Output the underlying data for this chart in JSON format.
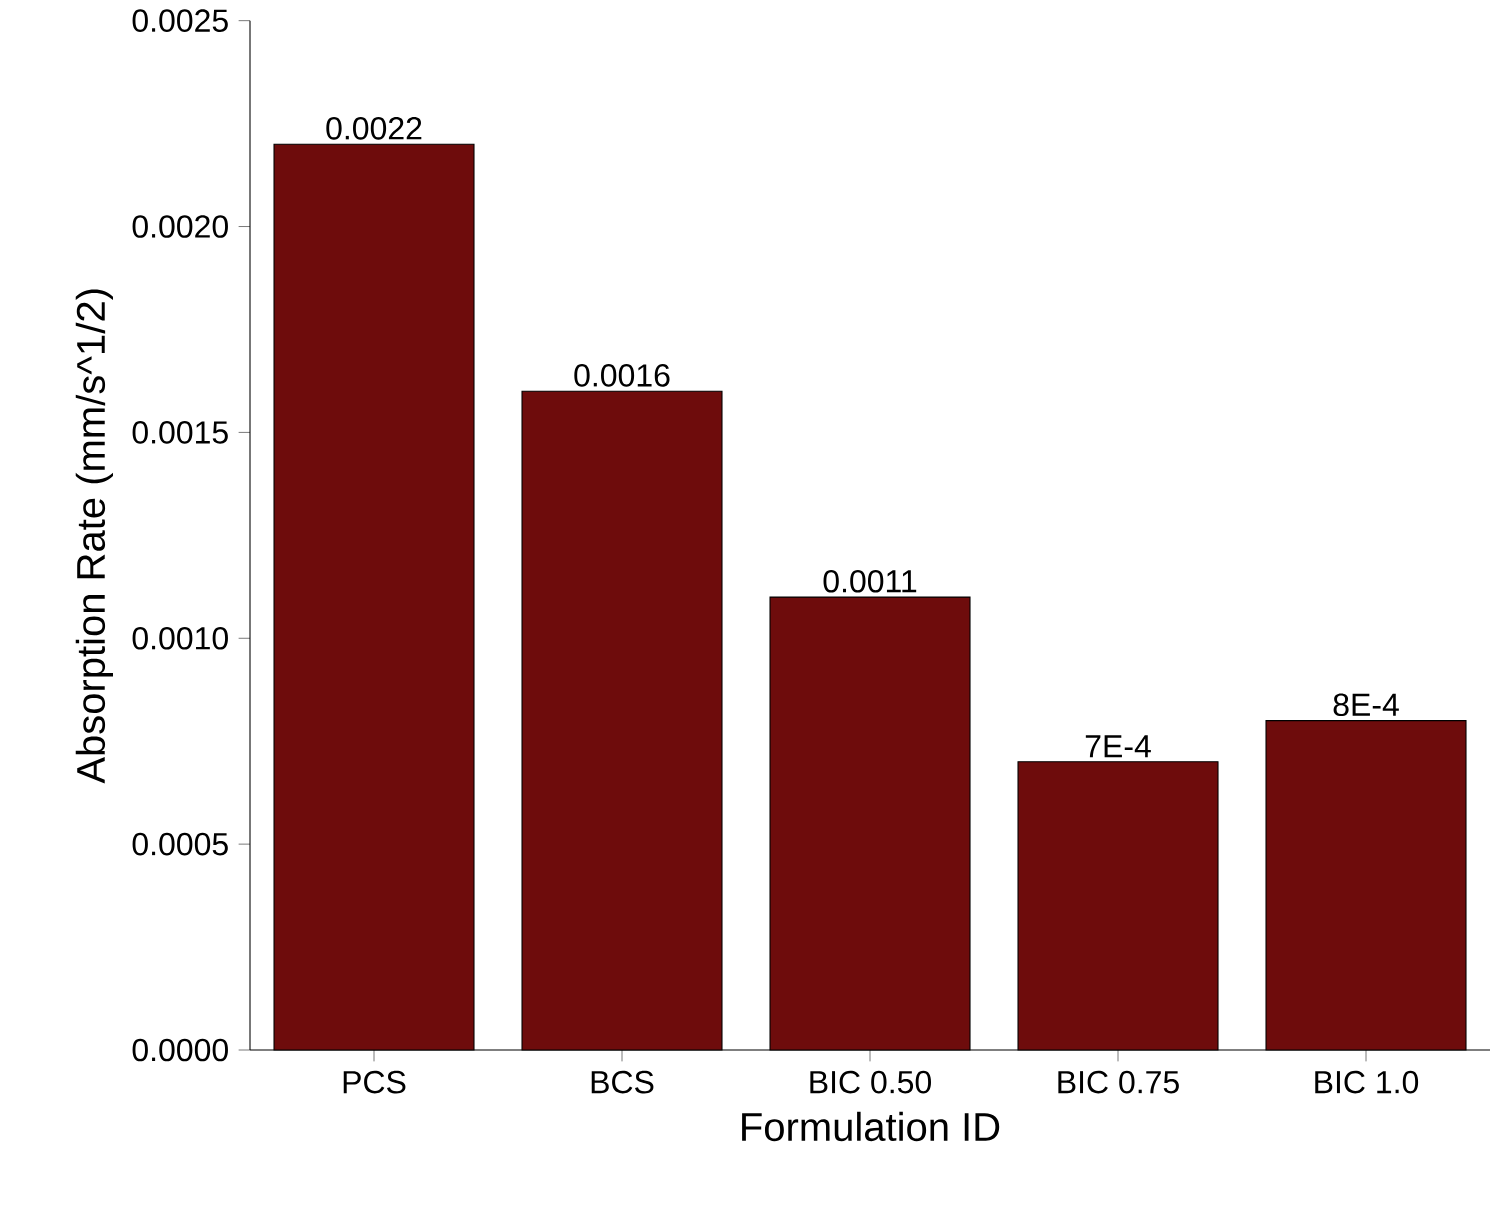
{
  "chart_data": {
    "type": "bar",
    "xlabel": "Formulation ID",
    "ylabel": "Absorption Rate (mm/s^1/2)",
    "categories": [
      "PCS",
      "BCS",
      "BIC 0.50",
      "BIC 0.75",
      "BIC 1.0"
    ],
    "values": [
      0.0022,
      0.0016,
      0.0011,
      0.0007,
      0.0008
    ],
    "value_labels": [
      "0.0022",
      "0.0016",
      "0.0011",
      "7E-4",
      "8E-4"
    ],
    "color": "#6e0c0c",
    "ylim": [
      0,
      0.0025
    ],
    "yticks": [
      {
        "value": 0,
        "label": "0.0000"
      },
      {
        "value": 0.0005,
        "label": "0.0005"
      },
      {
        "value": 0.001,
        "label": "0.0010"
      },
      {
        "value": 0.0015,
        "label": "0.0015"
      },
      {
        "value": 0.002,
        "label": "0.0020"
      },
      {
        "value": 0.0025,
        "label": "0.0025"
      }
    ]
  }
}
